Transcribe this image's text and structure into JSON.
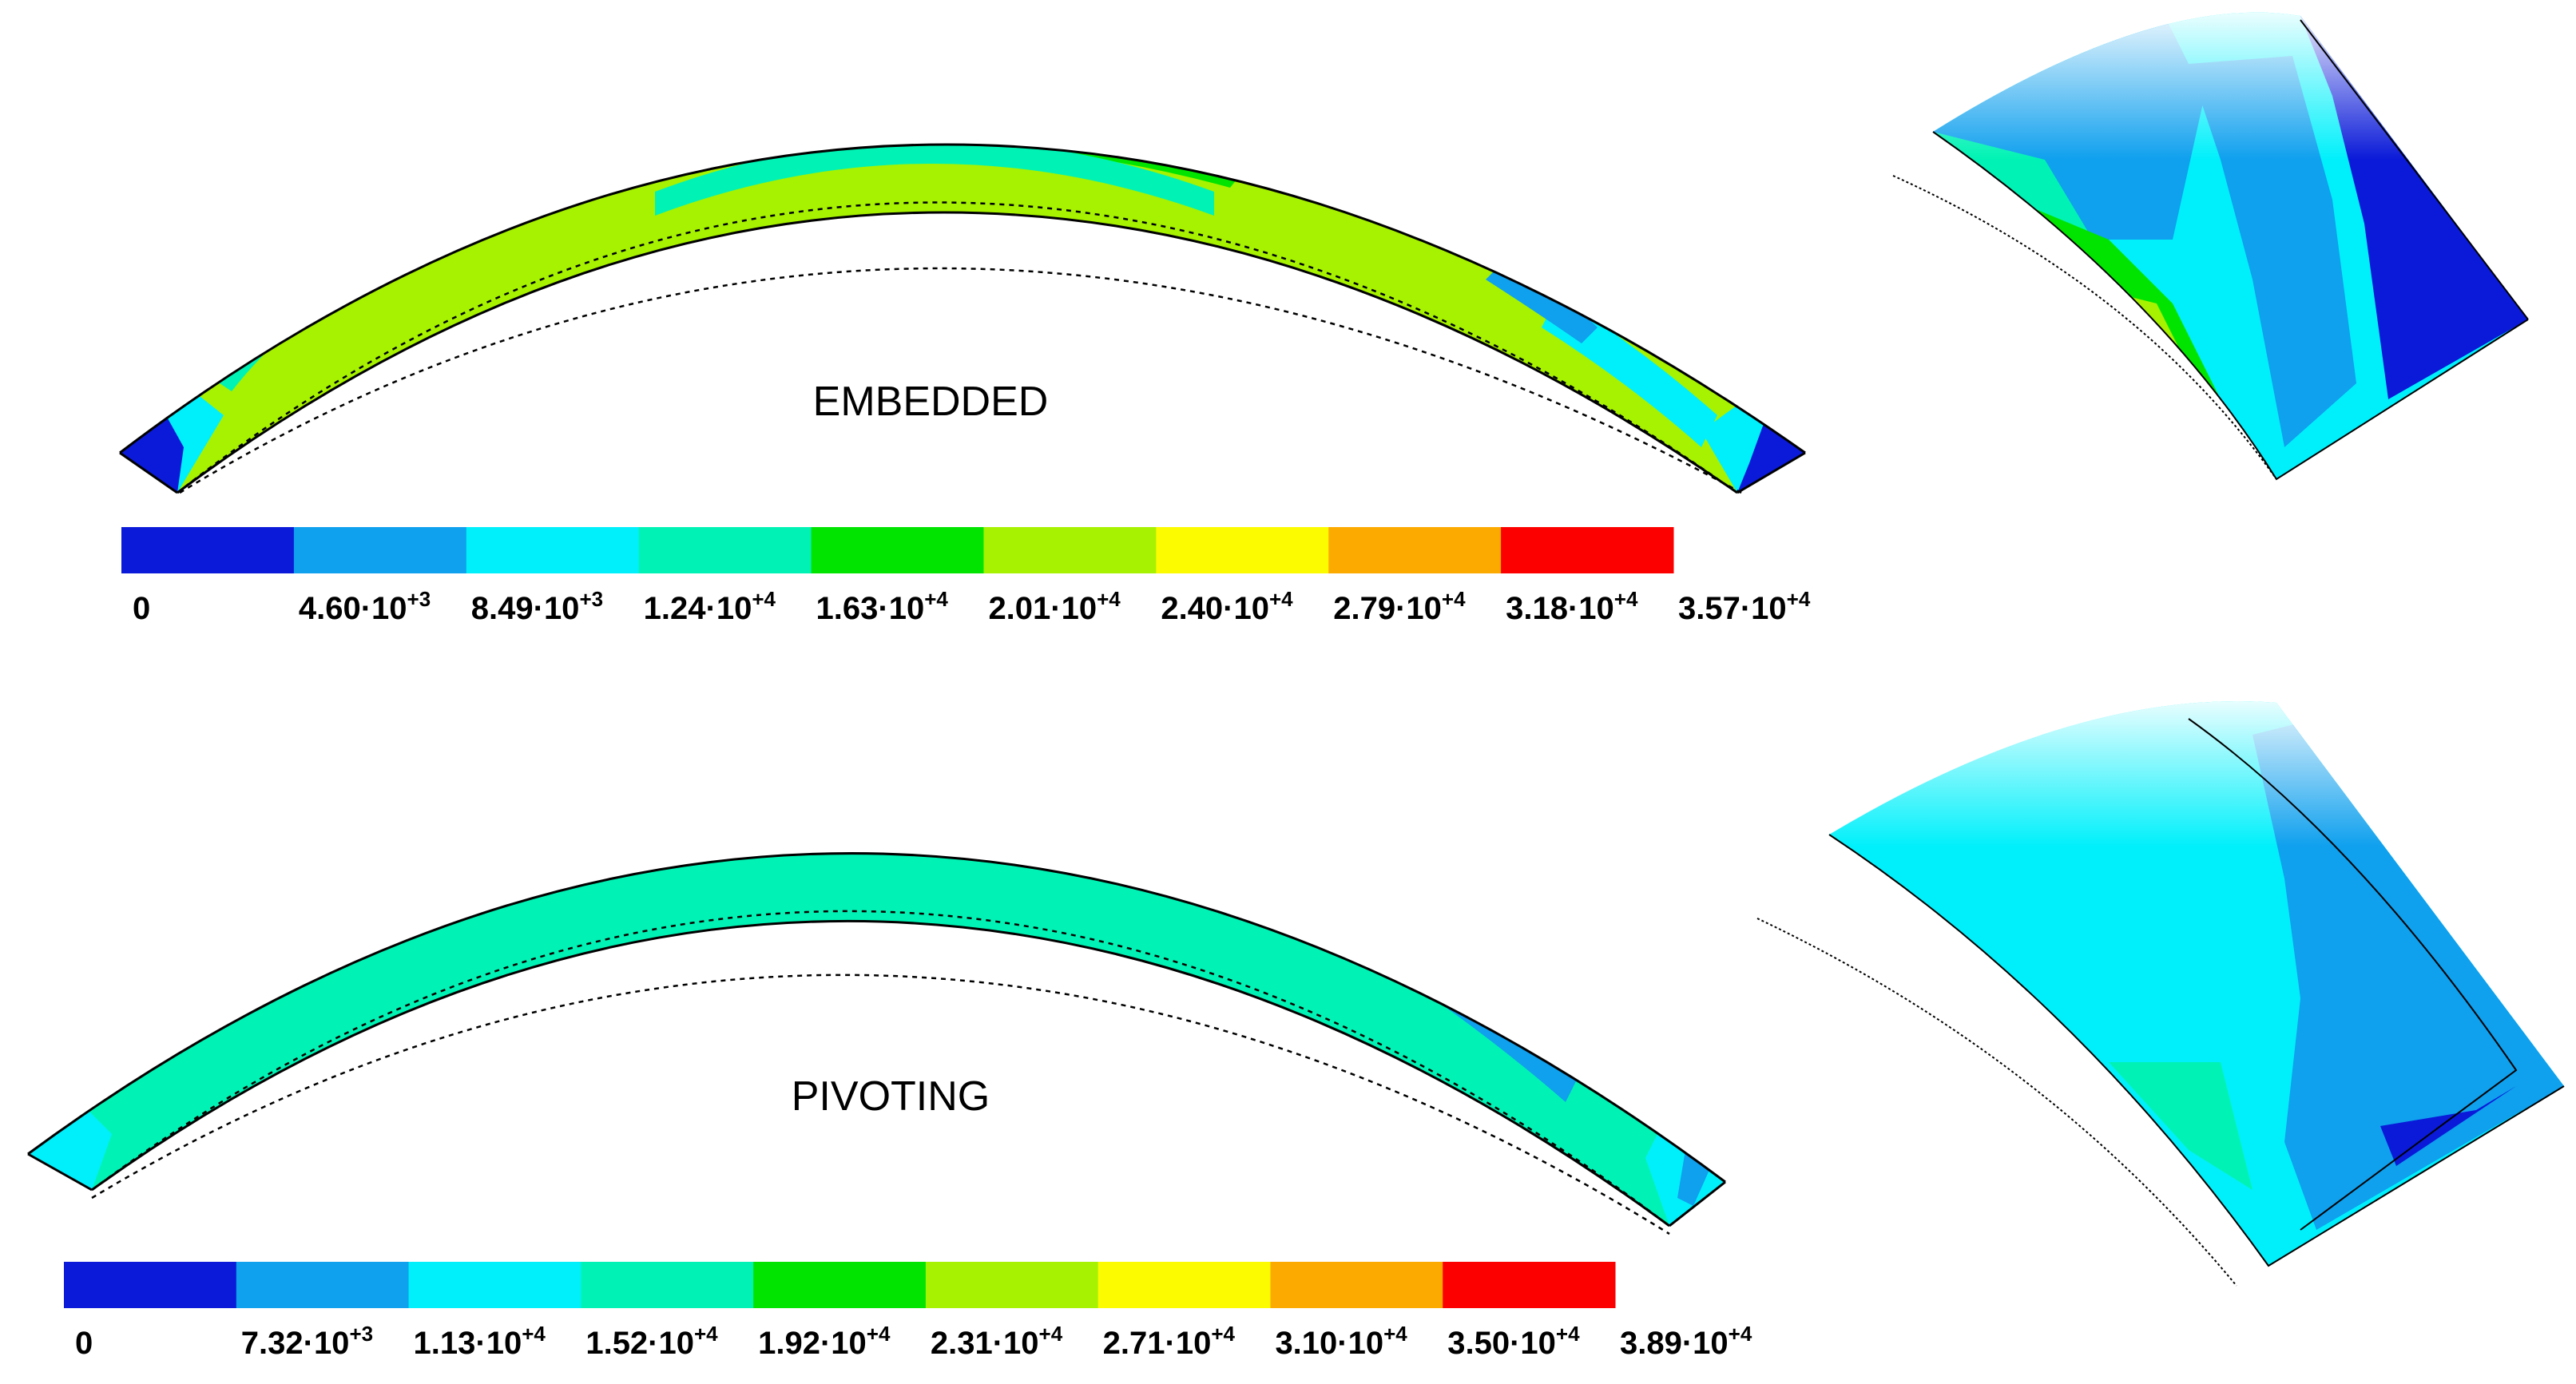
{
  "colors": [
    "#0a1ad8",
    "#0fa0ee",
    "#00f0fb",
    "#00f3b4",
    "#00e400",
    "#a6f200",
    "#fcfb00",
    "#fdaa00",
    "#fc0000"
  ],
  "panels": [
    {
      "title": "EMBEDDED",
      "scale_ticks": [
        {
          "m": "0",
          "e": ""
        },
        {
          "m": "4.60·10",
          "e": "+3"
        },
        {
          "m": "8.49·10",
          "e": "+3"
        },
        {
          "m": "1.24·10",
          "e": "+4"
        },
        {
          "m": "1.63·10",
          "e": "+4"
        },
        {
          "m": "2.01·10",
          "e": "+4"
        },
        {
          "m": "2.40·10",
          "e": "+4"
        },
        {
          "m": "2.79·10",
          "e": "+4"
        },
        {
          "m": "3.18·10",
          "e": "+4"
        },
        {
          "m": "3.57·10",
          "e": "+4"
        }
      ]
    },
    {
      "title": "PIVOTING",
      "scale_ticks": [
        {
          "m": "0",
          "e": ""
        },
        {
          "m": "7.32·10",
          "e": "+3"
        },
        {
          "m": "1.13·10",
          "e": "+4"
        },
        {
          "m": "1.52·10",
          "e": "+4"
        },
        {
          "m": "1.92·10",
          "e": "+4"
        },
        {
          "m": "2.31·10",
          "e": "+4"
        },
        {
          "m": "2.71·10",
          "e": "+4"
        },
        {
          "m": "3.10·10",
          "e": "+4"
        },
        {
          "m": "3.50·10",
          "e": "+4"
        },
        {
          "m": "3.89·10",
          "e": "+4"
        }
      ]
    }
  ]
}
